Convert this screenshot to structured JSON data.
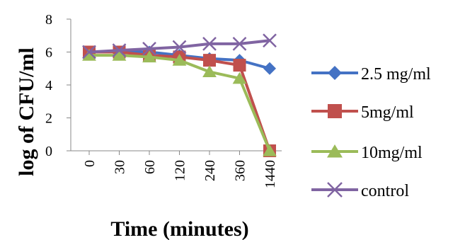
{
  "chart_data": {
    "type": "line",
    "categories": [
      "0",
      "30",
      "60",
      "120",
      "240",
      "360",
      "1440"
    ],
    "xlabel": "Time (minutes)",
    "ylabel": "log of CFU/ml",
    "ylim": [
      0,
      8
    ],
    "yticks": [
      0,
      2,
      4,
      6,
      8
    ],
    "grid": false,
    "legend_position": "right",
    "series": [
      {
        "name": "2.5 mg/ml",
        "color": "#4472C4",
        "marker": "diamond",
        "values": [
          6.0,
          6.0,
          6.0,
          5.8,
          5.6,
          5.5,
          5.0
        ]
      },
      {
        "name": "5mg/ml",
        "color": "#C0504D",
        "marker": "square",
        "values": [
          6.0,
          6.0,
          5.8,
          5.7,
          5.5,
          5.2,
          0.0
        ]
      },
      {
        "name": "10mg/ml",
        "color": "#9BBB59",
        "marker": "triangle",
        "values": [
          5.8,
          5.8,
          5.7,
          5.5,
          4.8,
          4.4,
          0.0
        ]
      },
      {
        "name": "control",
        "color": "#8064A2",
        "marker": "x",
        "values": [
          6.0,
          6.1,
          6.2,
          6.3,
          6.5,
          6.5,
          6.7
        ]
      }
    ]
  }
}
